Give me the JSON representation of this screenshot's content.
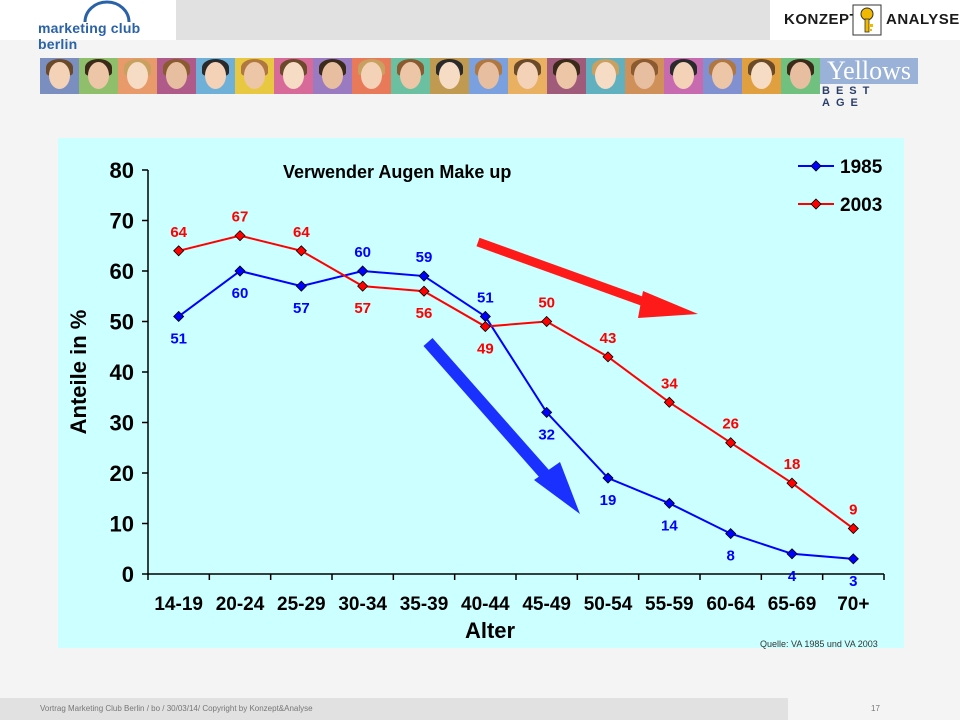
{
  "header": {
    "left_logo_text": "marketing club berlin",
    "right_logo_left": "KONZEPT",
    "right_logo_right": "ANALYSE"
  },
  "banner": {
    "brand_word": "Yellows",
    "brand_sub": "BEST AGE"
  },
  "chart_data": {
    "type": "line",
    "title": "Verwender Augen Make up",
    "xlabel": "Alter",
    "ylabel": "Anteile in %",
    "categories": [
      "14-19",
      "20-24",
      "25-29",
      "30-34",
      "35-39",
      "40-44",
      "45-49",
      "50-54",
      "55-59",
      "60-64",
      "65-69",
      "70+"
    ],
    "ylim": [
      0,
      80
    ],
    "yticks": [
      0,
      10,
      20,
      30,
      40,
      50,
      60,
      70,
      80
    ],
    "grid": false,
    "legend": "top-right",
    "series": [
      {
        "name": "1985",
        "color": "#0000ff",
        "values": [
          51,
          60,
          57,
          60,
          59,
          51,
          32,
          19,
          14,
          8,
          4,
          3
        ],
        "labels": [
          "51",
          "60",
          "57",
          "60",
          "59",
          "51",
          "32",
          "19",
          "14",
          "8",
          "4",
          "3"
        ]
      },
      {
        "name": "2003",
        "color": "#ff0000",
        "values": [
          64,
          67,
          64,
          57,
          56,
          49,
          50,
          43,
          34,
          26,
          18,
          9
        ],
        "labels": [
          "64",
          "67",
          "64",
          "57",
          "56",
          "49",
          "50",
          "43",
          "34",
          "26",
          "18",
          "9"
        ]
      }
    ]
  },
  "source": "Quelle: VA 1985 und VA 2003",
  "footer": {
    "text": "Vortrag Marketing Club Berlin / bo / 30/03/14/ Copyright by Konzept&Analyse",
    "page": "17"
  }
}
